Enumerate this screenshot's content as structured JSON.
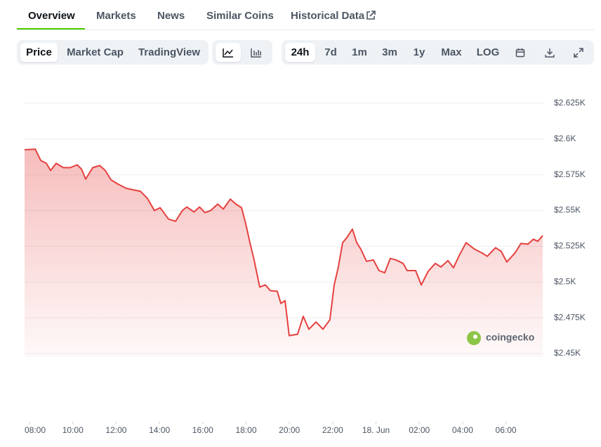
{
  "tabs": [
    "Overview",
    "Markets",
    "News",
    "Similar Coins",
    "Historical Data"
  ],
  "chart_views": [
    "Price",
    "Market Cap",
    "TradingView"
  ],
  "ranges": [
    "24h",
    "7d",
    "1m",
    "3m",
    "1y",
    "Max",
    "LOG"
  ],
  "watermark": "coingecko",
  "chart_data": {
    "type": "area",
    "color": "#e5413f",
    "grid": true,
    "xlim": [
      7.77,
      31.7
    ],
    "xticks": [
      {
        "value": 8,
        "label": "08:00"
      },
      {
        "value": 10,
        "label": "10:00"
      },
      {
        "value": 12,
        "label": "12:00"
      },
      {
        "value": 14,
        "label": "14:00"
      },
      {
        "value": 16,
        "label": "16:00"
      },
      {
        "value": 18,
        "label": "18:00"
      },
      {
        "value": 20,
        "label": "20:00"
      },
      {
        "value": 22,
        "label": "22:00"
      },
      {
        "value": 24,
        "label": "18. Jun"
      },
      {
        "value": 26,
        "label": "02:00"
      },
      {
        "value": 28,
        "label": "04:00"
      },
      {
        "value": 30,
        "label": "06:00"
      }
    ],
    "ylim": [
      2450,
      2625
    ],
    "yticks": [
      {
        "value": 2450,
        "label": "$2.45K"
      },
      {
        "value": 2475,
        "label": "$2.475K"
      },
      {
        "value": 2500,
        "label": "$2.5K"
      },
      {
        "value": 2525,
        "label": "$2.525K"
      },
      {
        "value": 2550,
        "label": "$2.55K"
      },
      {
        "value": 2575,
        "label": "$2.575K"
      },
      {
        "value": 2600,
        "label": "$2.6K"
      },
      {
        "value": 2625,
        "label": "$2.625K"
      }
    ],
    "x": [
      7.77,
      8.26,
      8.52,
      8.78,
      8.97,
      9.23,
      9.56,
      9.88,
      10.2,
      10.4,
      10.59,
      10.92,
      11.24,
      11.5,
      11.76,
      12.08,
      12.47,
      12.8,
      13.12,
      13.44,
      13.77,
      14.03,
      14.42,
      14.74,
      15.06,
      15.26,
      15.59,
      15.85,
      16.1,
      16.36,
      16.69,
      16.95,
      17.27,
      17.53,
      17.79,
      17.98,
      18.18,
      18.37,
      18.63,
      18.89,
      19.12,
      19.44,
      19.61,
      19.8,
      19.99,
      20.38,
      20.64,
      20.9,
      21.23,
      21.55,
      21.87,
      22.07,
      22.26,
      22.46,
      22.65,
      22.91,
      23.11,
      23.3,
      23.56,
      23.88,
      24.14,
      24.4,
      24.66,
      24.92,
      25.25,
      25.44,
      25.83,
      26.09,
      26.41,
      26.74,
      27.0,
      27.32,
      27.58,
      27.84,
      28.16,
      28.55,
      28.88,
      29.14,
      29.52,
      29.78,
      30.04,
      30.43,
      30.69,
      31.02,
      31.27,
      31.47,
      31.7
    ],
    "values": [
      2592.5,
      2593,
      2585,
      2583,
      2578,
      2583,
      2580,
      2580,
      2582,
      2579,
      2572,
      2580,
      2581.5,
      2578,
      2571.5,
      2568.5,
      2565.5,
      2564.5,
      2563.5,
      2558.5,
      2550,
      2552,
      2544,
      2542.5,
      2550,
      2552.5,
      2549,
      2552.5,
      2548.5,
      2550,
      2554.5,
      2551,
      2558,
      2554.5,
      2552,
      2541,
      2527.5,
      2515.5,
      2496.5,
      2498,
      2494,
      2493.5,
      2485,
      2487,
      2462.5,
      2463.5,
      2476,
      2467,
      2472,
      2467,
      2473.5,
      2498,
      2510.5,
      2527.5,
      2531,
      2537,
      2527.5,
      2523,
      2514.5,
      2515.5,
      2508,
      2506.5,
      2516.5,
      2515.5,
      2513,
      2508,
      2508,
      2498,
      2507.5,
      2513,
      2510.5,
      2515,
      2510,
      2518.5,
      2527.5,
      2523,
      2520.5,
      2518,
      2524,
      2521.5,
      2514,
      2520.5,
      2527,
      2526.5,
      2530,
      2528.5,
      2532.5
    ]
  }
}
